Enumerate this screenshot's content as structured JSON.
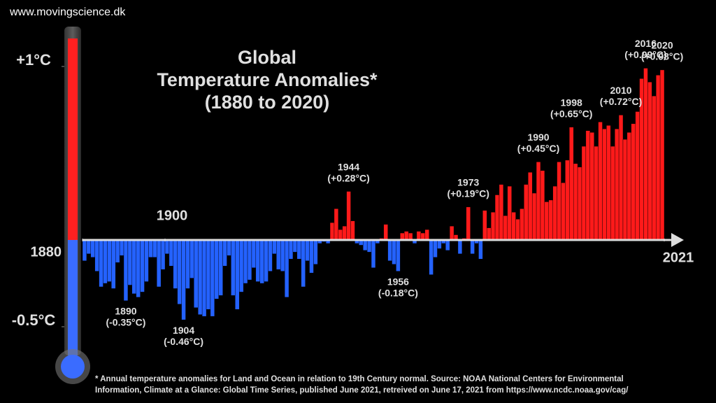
{
  "site": "www.movingscience.dk",
  "chart_data": {
    "type": "bar",
    "title": [
      "Global",
      "Temperature Anomalies*",
      "(1880 to 2020)"
    ],
    "x": [
      1880,
      1881,
      1882,
      1883,
      1884,
      1885,
      1886,
      1887,
      1888,
      1889,
      1890,
      1891,
      1892,
      1893,
      1894,
      1895,
      1896,
      1897,
      1898,
      1899,
      1900,
      1901,
      1902,
      1903,
      1904,
      1905,
      1906,
      1907,
      1908,
      1909,
      1910,
      1911,
      1912,
      1913,
      1914,
      1915,
      1916,
      1917,
      1918,
      1919,
      1920,
      1921,
      1922,
      1923,
      1924,
      1925,
      1926,
      1927,
      1928,
      1929,
      1930,
      1931,
      1932,
      1933,
      1934,
      1935,
      1936,
      1937,
      1938,
      1939,
      1940,
      1941,
      1942,
      1943,
      1944,
      1945,
      1946,
      1947,
      1948,
      1949,
      1950,
      1951,
      1952,
      1953,
      1954,
      1955,
      1956,
      1957,
      1958,
      1959,
      1960,
      1961,
      1962,
      1963,
      1964,
      1965,
      1966,
      1967,
      1968,
      1969,
      1970,
      1971,
      1972,
      1973,
      1974,
      1975,
      1976,
      1977,
      1978,
      1979,
      1980,
      1981,
      1982,
      1983,
      1984,
      1985,
      1986,
      1987,
      1988,
      1989,
      1990,
      1991,
      1992,
      1993,
      1994,
      1995,
      1996,
      1997,
      1998,
      1999,
      2000,
      2001,
      2002,
      2003,
      2004,
      2005,
      2006,
      2007,
      2008,
      2009,
      2010,
      2011,
      2012,
      2013,
      2014,
      2015,
      2016,
      2017,
      2018,
      2019,
      2020
    ],
    "values": [
      -0.12,
      -0.08,
      -0.1,
      -0.18,
      -0.27,
      -0.25,
      -0.24,
      -0.28,
      -0.13,
      -0.09,
      -0.35,
      -0.26,
      -0.31,
      -0.33,
      -0.3,
      -0.24,
      -0.1,
      -0.1,
      -0.27,
      -0.17,
      -0.08,
      -0.15,
      -0.28,
      -0.37,
      -0.46,
      -0.28,
      -0.22,
      -0.39,
      -0.43,
      -0.44,
      -0.4,
      -0.44,
      -0.34,
      -0.32,
      -0.15,
      -0.09,
      -0.32,
      -0.4,
      -0.3,
      -0.25,
      -0.23,
      -0.16,
      -0.24,
      -0.25,
      -0.24,
      -0.18,
      -0.08,
      -0.17,
      -0.18,
      -0.33,
      -0.11,
      -0.07,
      -0.11,
      -0.27,
      -0.12,
      -0.19,
      -0.14,
      -0.02,
      -0.01,
      -0.02,
      0.1,
      0.18,
      0.06,
      0.08,
      0.28,
      0.11,
      -0.02,
      -0.03,
      -0.06,
      -0.07,
      -0.16,
      -0.02,
      0.01,
      0.09,
      -0.12,
      -0.14,
      -0.18,
      0.04,
      0.05,
      0.04,
      -0.02,
      0.05,
      0.04,
      0.06,
      -0.2,
      -0.1,
      -0.05,
      -0.02,
      -0.06,
      0.08,
      0.03,
      -0.08,
      0.01,
      0.19,
      -0.08,
      -0.02,
      -0.11,
      0.17,
      0.07,
      0.16,
      0.26,
      0.32,
      0.14,
      0.31,
      0.16,
      0.12,
      0.18,
      0.32,
      0.39,
      0.27,
      0.45,
      0.4,
      0.22,
      0.23,
      0.31,
      0.45,
      0.33,
      0.46,
      0.65,
      0.44,
      0.42,
      0.54,
      0.63,
      0.62,
      0.54,
      0.68,
      0.64,
      0.66,
      0.54,
      0.64,
      0.72,
      0.58,
      0.62,
      0.67,
      0.74,
      0.93,
      0.99,
      0.91,
      0.83,
      0.95,
      0.98
    ],
    "positive_color": "#ff1a1a",
    "negative_color": "#2462ff",
    "xlim": [
      1880,
      2021
    ],
    "xticks": [
      1880,
      1900,
      2021
    ],
    "ylim": [
      -0.5,
      1
    ],
    "yticks": [
      {
        "value": 1,
        "label": "+1°C"
      },
      {
        "value": -0.5,
        "label": "-0.5°C"
      }
    ],
    "annotations": [
      {
        "year": "1890",
        "text": "(-0.35°C)"
      },
      {
        "year": "1904",
        "text": "(-0.46°C)"
      },
      {
        "year": "1944",
        "text": "(+0.28°C)"
      },
      {
        "year": "1956",
        "text": "(-0.18°C)"
      },
      {
        "year": "1973",
        "text": "(+0.19°C)"
      },
      {
        "year": "1990",
        "text": "(+0.45°C)"
      },
      {
        "year": "1998",
        "text": "(+0.65°C)"
      },
      {
        "year": "2010",
        "text": "(+0.72°C)"
      },
      {
        "year": "2016",
        "text": "(+0.99°C)"
      },
      {
        "year": "2020",
        "text": "(+0.98°C)"
      }
    ],
    "footnote": [
      "* Annual temperature anomalies for Land and Ocean in relation to 19th Century normal. Source: NOAA National Centers for Environmental",
      "Information, Climate at a Glance: Global Time Series, published June 2021, retreived on June 17, 2021 from https://www.ncdc.noaa.gov/cag/"
    ]
  }
}
